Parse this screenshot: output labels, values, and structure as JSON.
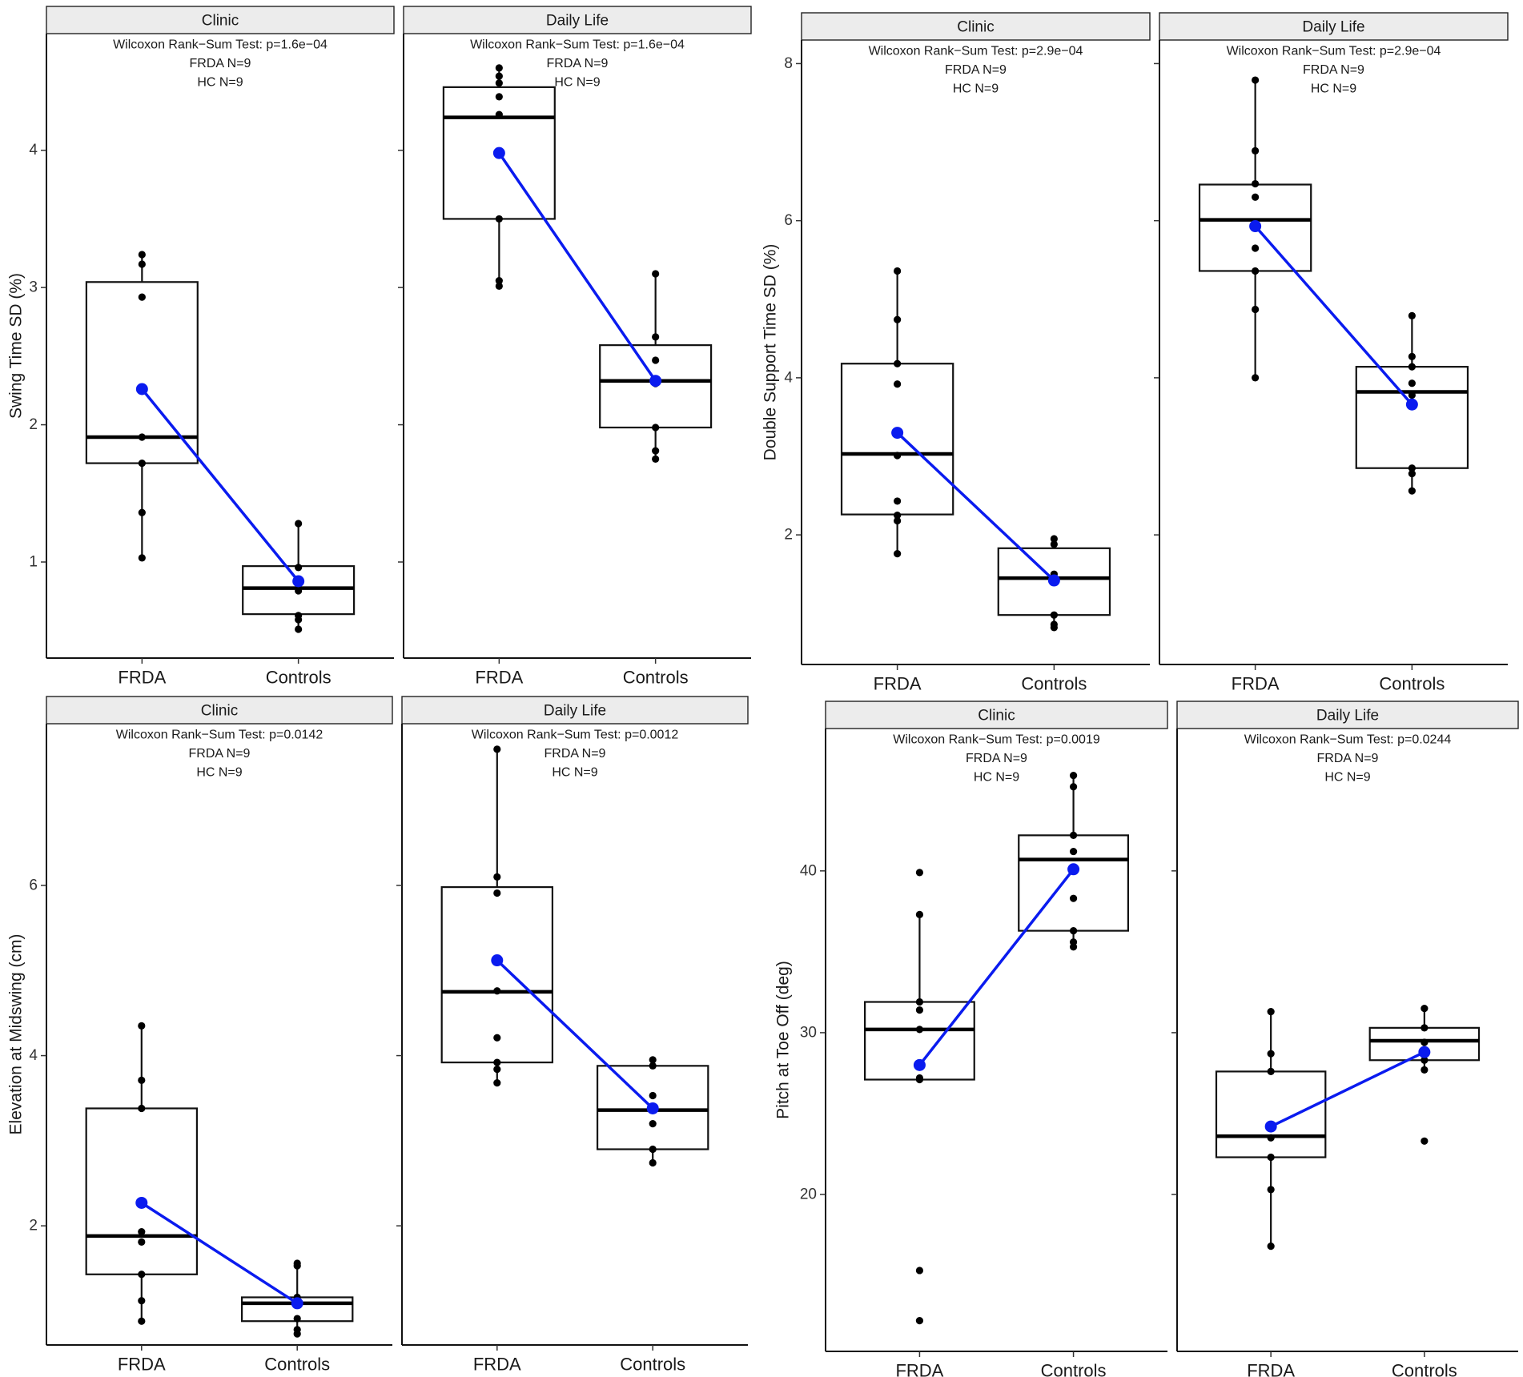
{
  "colors": {
    "mean": "#0a1bef",
    "points": "#000000",
    "strip": "#ececec"
  },
  "chart_data": [
    {
      "type": "box",
      "ylabel": "Swing Time SD (%)",
      "ylim": [
        0.3,
        4.85
      ],
      "yticks": [
        1,
        2,
        3,
        4
      ],
      "categories": [
        "FRDA",
        "Controls"
      ],
      "facets": [
        {
          "title": "Clinic",
          "annotations": [
            "Wilcoxon Rank−Sum Test: p=1.6e−04",
            "FRDA N=9",
            "HC N=9"
          ],
          "groups": [
            {
              "name": "FRDA",
              "q1": 1.72,
              "median": 1.91,
              "q3": 3.04,
              "whisker_low": 1.03,
              "whisker_high": 3.24,
              "points": [
                3.24,
                3.17,
                2.93,
                1.91,
                1.72,
                1.36,
                1.03
              ],
              "mean": 2.26
            },
            {
              "name": "Controls",
              "q1": 0.62,
              "median": 0.81,
              "q3": 0.97,
              "whisker_low": 0.51,
              "whisker_high": 1.28,
              "points": [
                1.28,
                0.96,
                0.87,
                0.79,
                0.61,
                0.58,
                0.51
              ],
              "mean": 0.86
            }
          ]
        },
        {
          "title": "Daily Life",
          "annotations": [
            "Wilcoxon Rank−Sum Test: p=1.6e−04",
            "FRDA N=9",
            "HC N=9"
          ],
          "groups": [
            {
              "name": "FRDA",
              "q1": 3.5,
              "median": 4.24,
              "q3": 4.46,
              "whisker_low": 3.01,
              "whisker_high": 4.6,
              "points": [
                4.6,
                4.54,
                4.49,
                4.39,
                4.26,
                3.5,
                3.05,
                3.01
              ],
              "mean": 3.98
            },
            {
              "name": "Controls",
              "q1": 1.98,
              "median": 2.32,
              "q3": 2.58,
              "whisker_low": 1.75,
              "whisker_high": 3.1,
              "points": [
                3.1,
                2.64,
                2.47,
                2.3,
                1.98,
                1.81,
                1.75
              ],
              "mean": 2.32
            }
          ]
        }
      ]
    },
    {
      "type": "box",
      "ylabel": "Double Support Time SD (%)",
      "ylim": [
        0.35,
        8.3
      ],
      "yticks": [
        2,
        4,
        6,
        8
      ],
      "categories": [
        "FRDA",
        "Controls"
      ],
      "facets": [
        {
          "title": "Clinic",
          "annotations": [
            "Wilcoxon Rank−Sum Test: p=2.9e−04",
            "FRDA N=9",
            "HC N=9"
          ],
          "groups": [
            {
              "name": "FRDA",
              "q1": 2.26,
              "median": 3.03,
              "q3": 4.18,
              "whisker_low": 1.76,
              "whisker_high": 5.36,
              "points": [
                5.36,
                4.74,
                4.18,
                3.92,
                3.01,
                2.43,
                2.25,
                2.18,
                1.76
              ],
              "mean": 3.3
            },
            {
              "name": "Controls",
              "q1": 0.98,
              "median": 1.45,
              "q3": 1.83,
              "whisker_low": 0.82,
              "whisker_high": 1.95,
              "points": [
                1.95,
                1.88,
                1.5,
                1.45,
                0.98,
                0.86,
                0.82
              ],
              "mean": 1.42
            }
          ]
        },
        {
          "title": "Daily Life",
          "annotations": [
            "Wilcoxon Rank−Sum Test: p=2.9e−04",
            "FRDA N=9",
            "HC N=9"
          ],
          "groups": [
            {
              "name": "FRDA",
              "q1": 5.36,
              "median": 6.01,
              "q3": 6.46,
              "whisker_low": 4.0,
              "whisker_high": 7.79,
              "points": [
                7.79,
                6.89,
                6.47,
                6.3,
                5.95,
                5.65,
                5.36,
                4.87,
                4.0
              ],
              "mean": 5.93
            },
            {
              "name": "Controls",
              "q1": 2.85,
              "median": 3.82,
              "q3": 4.14,
              "whisker_low": 2.56,
              "whisker_high": 4.79,
              "points": [
                4.79,
                4.27,
                4.14,
                3.93,
                3.78,
                2.85,
                2.78,
                2.56
              ],
              "mean": 3.66
            }
          ]
        }
      ]
    },
    {
      "type": "box",
      "ylabel": "Elevation at Midswing (cm)",
      "ylim": [
        0.6,
        7.9
      ],
      "yticks": [
        2,
        4,
        6
      ],
      "categories": [
        "FRDA",
        "Controls"
      ],
      "facets": [
        {
          "title": "Clinic",
          "annotations": [
            "Wilcoxon Rank−Sum Test: p=0.0142",
            "FRDA N=9",
            "HC N=9"
          ],
          "groups": [
            {
              "name": "FRDA",
              "q1": 1.43,
              "median": 1.88,
              "q3": 3.38,
              "whisker_low": 0.88,
              "whisker_high": 4.35,
              "points": [
                4.35,
                3.71,
                3.38,
                1.93,
                1.81,
                1.43,
                1.12,
                0.88
              ],
              "mean": 2.27
            },
            {
              "name": "Controls",
              "q1": 0.88,
              "median": 1.09,
              "q3": 1.16,
              "whisker_low": 0.72,
              "whisker_high": 1.56,
              "points": [
                1.56,
                1.53,
                1.16,
                1.09,
                0.91,
                0.78,
                0.73
              ],
              "mean": 1.09
            }
          ]
        },
        {
          "title": "Daily Life",
          "annotations": [
            "Wilcoxon Rank−Sum Test: p=0.0012",
            "FRDA N=9",
            "HC N=9"
          ],
          "groups": [
            {
              "name": "FRDA",
              "q1": 3.92,
              "median": 4.75,
              "q3": 5.98,
              "whisker_low": 3.68,
              "whisker_high": 7.6,
              "points": [
                7.6,
                6.1,
                5.91,
                4.76,
                4.21,
                3.92,
                3.84,
                3.68
              ],
              "mean": 5.12
            },
            {
              "name": "Controls",
              "q1": 2.9,
              "median": 3.36,
              "q3": 3.88,
              "whisker_low": 2.74,
              "whisker_high": 3.95,
              "points": [
                3.95,
                3.88,
                3.53,
                3.38,
                3.2,
                2.9,
                2.74
              ],
              "mean": 3.38
            }
          ]
        }
      ]
    },
    {
      "type": "box",
      "ylabel": "Pitch at Toe Off (deg)",
      "ylim": [
        10.3,
        48.8
      ],
      "yticks": [
        20,
        30,
        40
      ],
      "categories": [
        "FRDA",
        "Controls"
      ],
      "facets": [
        {
          "title": "Clinic",
          "annotations": [
            "Wilcoxon Rank−Sum Test: p=0.0019",
            "FRDA N=9",
            "HC N=9"
          ],
          "groups": [
            {
              "name": "FRDA",
              "q1": 27.1,
              "median": 30.2,
              "q3": 31.9,
              "whisker_low": 27.1,
              "whisker_high": 37.3,
              "points": [
                39.9,
                37.3,
                31.9,
                31.4,
                30.2,
                27.2,
                27.1,
                15.3,
                12.2
              ],
              "mean": 28.0
            },
            {
              "name": "Controls",
              "q1": 36.3,
              "median": 40.7,
              "q3": 42.2,
              "whisker_low": 35.3,
              "whisker_high": 45.9,
              "points": [
                45.9,
                45.2,
                42.2,
                41.2,
                38.3,
                36.3,
                35.6,
                35.3
              ],
              "mean": 40.1
            }
          ]
        },
        {
          "title": "Daily Life",
          "annotations": [
            "Wilcoxon Rank−Sum Test: p=0.0244",
            "FRDA N=9",
            "HC N=9"
          ],
          "groups": [
            {
              "name": "FRDA",
              "q1": 22.3,
              "median": 23.6,
              "q3": 27.6,
              "whisker_low": 16.8,
              "whisker_high": 31.3,
              "points": [
                31.3,
                28.7,
                27.6,
                23.5,
                22.3,
                20.3,
                16.8
              ],
              "mean": 24.2
            },
            {
              "name": "Controls",
              "q1": 28.3,
              "median": 29.5,
              "q3": 30.3,
              "whisker_low": 27.7,
              "whisker_high": 31.5,
              "points": [
                31.5,
                30.3,
                29.4,
                28.3,
                27.7,
                23.3
              ],
              "mean": 28.8
            }
          ]
        }
      ]
    }
  ]
}
